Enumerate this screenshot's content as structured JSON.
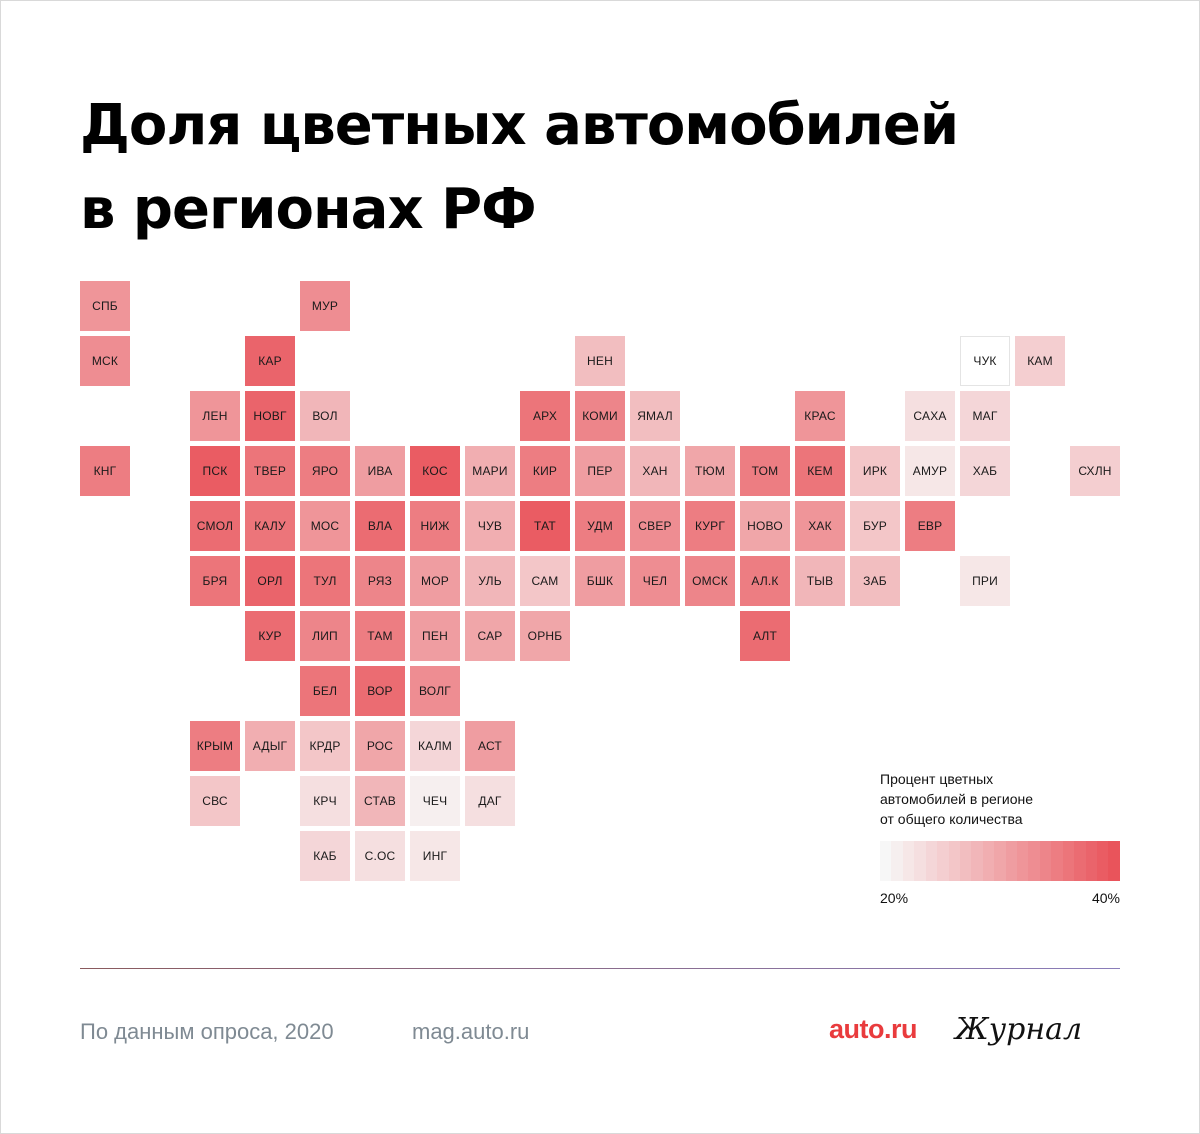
{
  "title": {
    "line1": "Доля цветных автомобилей",
    "line2": "в регионах РФ"
  },
  "regions": [
    {
      "label": "СПБ",
      "col": 0,
      "row": 0,
      "pct": 32
    },
    {
      "label": "МУР",
      "col": 4,
      "row": 0,
      "pct": 33
    },
    {
      "label": "МСК",
      "col": 0,
      "row": 1,
      "pct": 33
    },
    {
      "label": "КАР",
      "col": 3,
      "row": 1,
      "pct": 38
    },
    {
      "label": "НЕН",
      "col": 9,
      "row": 1,
      "pct": 27
    },
    {
      "label": "ЧУК",
      "col": 16,
      "row": 1,
      "pct": 20
    },
    {
      "label": "КАМ",
      "col": 17,
      "row": 1,
      "pct": 25
    },
    {
      "label": "ЛЕН",
      "col": 2,
      "row": 2,
      "pct": 32
    },
    {
      "label": "НОВГ",
      "col": 3,
      "row": 2,
      "pct": 38
    },
    {
      "label": "ВОЛ",
      "col": 4,
      "row": 2,
      "pct": 28
    },
    {
      "label": "АРХ",
      "col": 8,
      "row": 2,
      "pct": 36
    },
    {
      "label": "КОМИ",
      "col": 9,
      "row": 2,
      "pct": 34
    },
    {
      "label": "ЯМАЛ",
      "col": 10,
      "row": 2,
      "pct": 27
    },
    {
      "label": "КРАС",
      "col": 13,
      "row": 2,
      "pct": 32
    },
    {
      "label": "САХА",
      "col": 15,
      "row": 2,
      "pct": 23
    },
    {
      "label": "МАГ",
      "col": 16,
      "row": 2,
      "pct": 24
    },
    {
      "label": "КНГ",
      "col": 0,
      "row": 3,
      "pct": 35
    },
    {
      "label": "ПСК",
      "col": 2,
      "row": 3,
      "pct": 39
    },
    {
      "label": "ТВЕР",
      "col": 3,
      "row": 3,
      "pct": 36
    },
    {
      "label": "ЯРО",
      "col": 4,
      "row": 3,
      "pct": 35
    },
    {
      "label": "ИВА",
      "col": 5,
      "row": 3,
      "pct": 31
    },
    {
      "label": "КОС",
      "col": 6,
      "row": 3,
      "pct": 39
    },
    {
      "label": "МАРИ",
      "col": 7,
      "row": 3,
      "pct": 29
    },
    {
      "label": "КИР",
      "col": 8,
      "row": 3,
      "pct": 35
    },
    {
      "label": "ПЕР",
      "col": 9,
      "row": 3,
      "pct": 31
    },
    {
      "label": "ХАН",
      "col": 10,
      "row": 3,
      "pct": 28
    },
    {
      "label": "ТЮМ",
      "col": 11,
      "row": 3,
      "pct": 30
    },
    {
      "label": "ТОМ",
      "col": 12,
      "row": 3,
      "pct": 35
    },
    {
      "label": "КЕМ",
      "col": 13,
      "row": 3,
      "pct": 36
    },
    {
      "label": "ИРК",
      "col": 14,
      "row": 3,
      "pct": 26
    },
    {
      "label": "АМУР",
      "col": 15,
      "row": 3,
      "pct": 22
    },
    {
      "label": "ХАБ",
      "col": 16,
      "row": 3,
      "pct": 24
    },
    {
      "label": "СХЛН",
      "col": 18,
      "row": 3,
      "pct": 25
    },
    {
      "label": "СМОЛ",
      "col": 2,
      "row": 4,
      "pct": 37
    },
    {
      "label": "КАЛУ",
      "col": 3,
      "row": 4,
      "pct": 36
    },
    {
      "label": "МОС",
      "col": 4,
      "row": 4,
      "pct": 32
    },
    {
      "label": "ВЛА",
      "col": 5,
      "row": 4,
      "pct": 37
    },
    {
      "label": "НИЖ",
      "col": 6,
      "row": 4,
      "pct": 35
    },
    {
      "label": "ЧУВ",
      "col": 7,
      "row": 4,
      "pct": 29
    },
    {
      "label": "ТАТ",
      "col": 8,
      "row": 4,
      "pct": 39
    },
    {
      "label": "УДМ",
      "col": 9,
      "row": 4,
      "pct": 35
    },
    {
      "label": "СВЕР",
      "col": 10,
      "row": 4,
      "pct": 33
    },
    {
      "label": "КУРГ",
      "col": 11,
      "row": 4,
      "pct": 35
    },
    {
      "label": "НОВО",
      "col": 12,
      "row": 4,
      "pct": 30
    },
    {
      "label": "ХАК",
      "col": 13,
      "row": 4,
      "pct": 32
    },
    {
      "label": "БУР",
      "col": 14,
      "row": 4,
      "pct": 26
    },
    {
      "label": "ЕВР",
      "col": 15,
      "row": 4,
      "pct": 35
    },
    {
      "label": "БРЯ",
      "col": 2,
      "row": 5,
      "pct": 36
    },
    {
      "label": "ОРЛ",
      "col": 3,
      "row": 5,
      "pct": 38
    },
    {
      "label": "ТУЛ",
      "col": 4,
      "row": 5,
      "pct": 36
    },
    {
      "label": "РЯЗ",
      "col": 5,
      "row": 5,
      "pct": 34
    },
    {
      "label": "МОР",
      "col": 6,
      "row": 5,
      "pct": 31
    },
    {
      "label": "УЛЬ",
      "col": 7,
      "row": 5,
      "pct": 28
    },
    {
      "label": "САМ",
      "col": 8,
      "row": 5,
      "pct": 26
    },
    {
      "label": "БШК",
      "col": 9,
      "row": 5,
      "pct": 31
    },
    {
      "label": "ЧЕЛ",
      "col": 10,
      "row": 5,
      "pct": 33
    },
    {
      "label": "ОМСК",
      "col": 11,
      "row": 5,
      "pct": 34
    },
    {
      "label": "АЛ.К",
      "col": 12,
      "row": 5,
      "pct": 35
    },
    {
      "label": "ТЫВ",
      "col": 13,
      "row": 5,
      "pct": 28
    },
    {
      "label": "ЗАБ",
      "col": 14,
      "row": 5,
      "pct": 27
    },
    {
      "label": "ПРИ",
      "col": 16,
      "row": 5,
      "pct": 22
    },
    {
      "label": "КУР",
      "col": 3,
      "row": 6,
      "pct": 37
    },
    {
      "label": "ЛИП",
      "col": 4,
      "row": 6,
      "pct": 34
    },
    {
      "label": "ТАМ",
      "col": 5,
      "row": 6,
      "pct": 35
    },
    {
      "label": "ПЕН",
      "col": 6,
      "row": 6,
      "pct": 31
    },
    {
      "label": "САР",
      "col": 7,
      "row": 6,
      "pct": 30
    },
    {
      "label": "ОРНБ",
      "col": 8,
      "row": 6,
      "pct": 30
    },
    {
      "label": "АЛТ",
      "col": 12,
      "row": 6,
      "pct": 37
    },
    {
      "label": "БЕЛ",
      "col": 4,
      "row": 7,
      "pct": 36
    },
    {
      "label": "ВОР",
      "col": 5,
      "row": 7,
      "pct": 37
    },
    {
      "label": "ВОЛГ",
      "col": 6,
      "row": 7,
      "pct": 33
    },
    {
      "label": "КРЫМ",
      "col": 2,
      "row": 8,
      "pct": 35
    },
    {
      "label": "АДЫГ",
      "col": 3,
      "row": 8,
      "pct": 29
    },
    {
      "label": "КРДР",
      "col": 4,
      "row": 8,
      "pct": 26
    },
    {
      "label": "РОС",
      "col": 5,
      "row": 8,
      "pct": 30
    },
    {
      "label": "КАЛМ",
      "col": 6,
      "row": 8,
      "pct": 24
    },
    {
      "label": "АСТ",
      "col": 7,
      "row": 8,
      "pct": 31
    },
    {
      "label": "СВС",
      "col": 2,
      "row": 9,
      "pct": 26
    },
    {
      "label": "КРЧ",
      "col": 4,
      "row": 9,
      "pct": 23
    },
    {
      "label": "СТАВ",
      "col": 5,
      "row": 9,
      "pct": 28
    },
    {
      "label": "ЧЕЧ",
      "col": 6,
      "row": 9,
      "pct": 21
    },
    {
      "label": "ДАГ",
      "col": 7,
      "row": 9,
      "pct": 23
    },
    {
      "label": "КАБ",
      "col": 4,
      "row": 10,
      "pct": 24
    },
    {
      "label": "С.ОС",
      "col": 5,
      "row": 10,
      "pct": 23
    },
    {
      "label": "ИНГ",
      "col": 6,
      "row": 10,
      "pct": 22
    }
  ],
  "scale": {
    "min": 20,
    "max": 40,
    "color_low": "#f7f7f7",
    "color_high": "#e9545b"
  },
  "legend": {
    "title_line1": "Процент цветных",
    "title_line2": "автомобилей в регионе",
    "title_line3": "от общего количества",
    "min_label": "20%",
    "max_label": "40%"
  },
  "footer": {
    "source": "По данным опроса, 2020",
    "site": "mag.auto.ru",
    "brand": "auto.ru",
    "journal": "Журнал"
  }
}
